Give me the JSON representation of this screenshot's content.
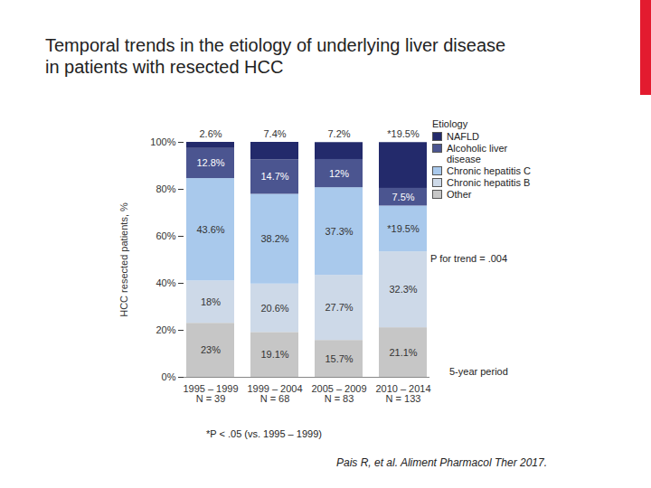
{
  "chart_data": {
    "type": "bar",
    "title": "Temporal trends in the etiology of underlying liver disease in patients with resected HCC",
    "stacked": true,
    "data_labels": true,
    "legend": "right",
    "legend_title": "Etiology",
    "categories": [
      "1995 – 1999",
      "1999 – 2004",
      "2005 – 2009",
      "2010 – 2014"
    ],
    "category_counts": [
      "N = 39",
      "N = 68",
      "N = 83",
      "N = 133"
    ],
    "x_label": "5-year period",
    "y_label": "HCC resected patients, %",
    "ylim": [
      0,
      100
    ],
    "yticks": [
      {
        "value": 0,
        "label": "0%"
      },
      {
        "value": 20,
        "label": "20%"
      },
      {
        "value": 40,
        "label": "40%"
      },
      {
        "value": 60,
        "label": "60%"
      },
      {
        "value": 80,
        "label": "80%"
      },
      {
        "value": 100,
        "label": "100%"
      }
    ],
    "series": [
      {
        "name": "NAFLD",
        "color": "#232a6b",
        "values": [
          2.6,
          7.4,
          7.2,
          19.5
        ],
        "value_labels": [
          "2.6%",
          "7.4%",
          "7.2%",
          "*19.5%"
        ]
      },
      {
        "name": "Alcoholic liver disease",
        "color": "#4b5590",
        "values": [
          12.8,
          14.7,
          12,
          7.5
        ],
        "value_labels": [
          "12.8%",
          "14.7%",
          "12%",
          "7.5%"
        ]
      },
      {
        "name": "Chronic hepatitis C",
        "color": "#a9c9ec",
        "values": [
          43.6,
          38.2,
          37.3,
          19.5
        ],
        "value_labels": [
          "43.6%",
          "38.2%",
          "37.3%",
          "*19.5%"
        ]
      },
      {
        "name": "Chronic hepatitis B",
        "color": "#cdd9e8",
        "values": [
          18,
          20.6,
          27.7,
          32.3
        ],
        "value_labels": [
          "18%",
          "20.6%",
          "27.7%",
          "32.3%"
        ]
      },
      {
        "name": "Other",
        "color": "#c6c6c6",
        "values": [
          23,
          19.1,
          15.7,
          21.1
        ],
        "value_labels": [
          "23%",
          "19.1%",
          "15.7%",
          "21.1%"
        ]
      }
    ],
    "annotations": [
      "P for trend = .004",
      "*P < .05 (vs. 1995 – 1999)"
    ],
    "source": "Pais R, et al. Aliment Pharmacol Ther 2017."
  }
}
